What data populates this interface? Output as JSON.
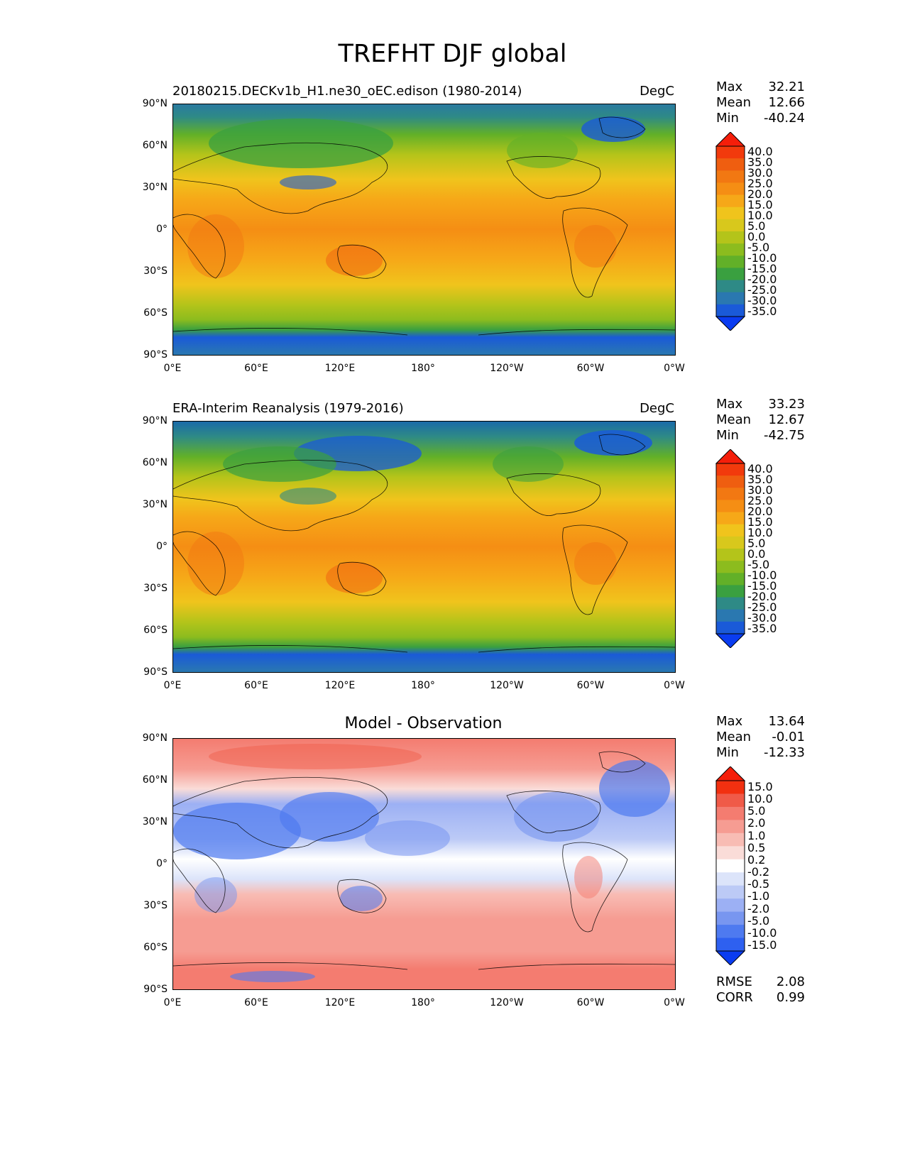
{
  "figure": {
    "title": "TREFHT DJF global",
    "lat_ticks": [
      "90°N",
      "60°N",
      "30°N",
      "0°",
      "30°S",
      "60°S",
      "90°S"
    ],
    "lon_ticks": [
      "0°E",
      "60°E",
      "120°E",
      "180°",
      "120°W",
      "60°W",
      "0°W"
    ]
  },
  "panels": [
    {
      "title": "20180215.DECKv1b_H1.ne30_oEC.edison (1980-2014)",
      "units": "DegC",
      "stats": {
        "max_label": "Max",
        "max": "32.21",
        "mean_label": "Mean",
        "mean": "12.66",
        "min_label": "Min",
        "min": "-40.24"
      },
      "colorbar": [
        "40.0",
        "35.0",
        "30.0",
        "25.0",
        "20.0",
        "15.0",
        "10.0",
        "5.0",
        "0.0",
        "-5.0",
        "-10.0",
        "-15.0",
        "-20.0",
        "-25.0",
        "-30.0",
        "-35.0"
      ]
    },
    {
      "title": "ERA-Interim Reanalysis (1979-2016)",
      "units": "DegC",
      "stats": {
        "max_label": "Max",
        "max": "33.23",
        "mean_label": "Mean",
        "mean": "12.67",
        "min_label": "Min",
        "min": "-42.75"
      },
      "colorbar": [
        "40.0",
        "35.0",
        "30.0",
        "25.0",
        "20.0",
        "15.0",
        "10.0",
        "5.0",
        "0.0",
        "-5.0",
        "-10.0",
        "-15.0",
        "-20.0",
        "-25.0",
        "-30.0",
        "-35.0"
      ]
    },
    {
      "title": "Model - Observation",
      "units": "",
      "stats": {
        "max_label": "Max",
        "max": "13.64",
        "mean_label": "Mean",
        "mean": "-0.01",
        "min_label": "Min",
        "min": "-12.33"
      },
      "colorbar": [
        "15.0",
        "10.0",
        "5.0",
        "2.0",
        "1.0",
        "0.5",
        "0.2",
        "-0.2",
        "-0.5",
        "-1.0",
        "-2.0",
        "-5.0",
        "-10.0",
        "-15.0"
      ],
      "extra_stats": {
        "rmse_label": "RMSE",
        "rmse": "2.08",
        "corr_label": "CORR",
        "corr": "0.99"
      }
    }
  ],
  "colors": {
    "temp_scale": [
      "#0a3cf0",
      "#1a5ad8",
      "#2a78b0",
      "#2e8a86",
      "#3aa040",
      "#62b028",
      "#8cbc1e",
      "#b4c41a",
      "#d8c81c",
      "#f0c41c",
      "#f6a818",
      "#f58e14",
      "#f27812",
      "#ef5e10",
      "#f23a0c",
      "#f51e0a"
    ],
    "diff_scale": [
      "#0a3cf0",
      "#2e60f0",
      "#4e7af0",
      "#7896f0",
      "#9cb0f4",
      "#bccaf6",
      "#dce4fa",
      "#ffffff",
      "#fadcd8",
      "#f8bcb4",
      "#f69c92",
      "#f47c70",
      "#f05a48",
      "#f23010",
      "#f51e0a"
    ]
  }
}
